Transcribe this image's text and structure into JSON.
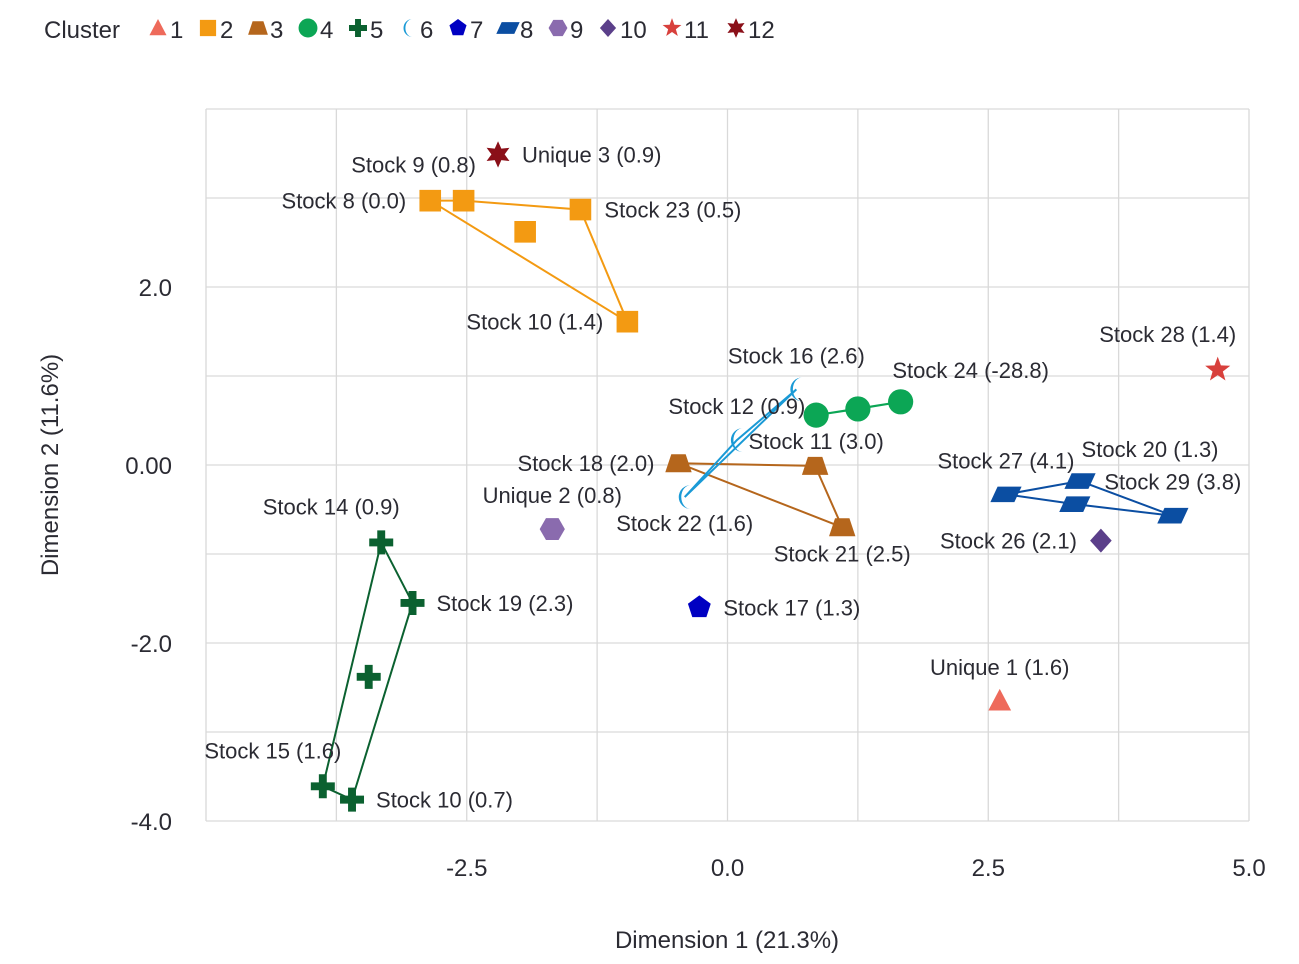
{
  "chart_data": {
    "type": "scatter",
    "xlabel": "Dimension 1 (21.3%)",
    "ylabel": "Dimension 2 (11.6%)",
    "xlim": [
      -5,
      5
    ],
    "ylim": [
      -4,
      4
    ],
    "x_gridlines": [
      -5,
      -3.75,
      -2.5,
      -1.25,
      0,
      1.25,
      2.5,
      3.75,
      5
    ],
    "y_gridlines": [
      -4,
      -3,
      -2,
      -1,
      0,
      1,
      2,
      3,
      4
    ],
    "x_ticks": [
      {
        "value": -2.5,
        "label": "-2.5"
      },
      {
        "value": 0,
        "label": "0.0"
      },
      {
        "value": 2.5,
        "label": "2.5"
      },
      {
        "value": 5,
        "label": "5.0"
      }
    ],
    "y_ticks": [
      {
        "value": 2,
        "label": "2.0"
      },
      {
        "value": 0,
        "label": "0.00"
      },
      {
        "value": -2,
        "label": "-2.0"
      },
      {
        "value": -4,
        "label": "-4.0"
      }
    ],
    "grid": true,
    "legend": {
      "title": "Cluster",
      "placement": "top-left"
    },
    "series": [
      {
        "name": "1",
        "marker": "triangle",
        "color": "#EE6A5B",
        "hull": false,
        "points": [
          {
            "x": 2.61,
            "y": -2.65,
            "label": "Unique 1 (1.6)",
            "label_pos": "above"
          }
        ]
      },
      {
        "name": "2",
        "marker": "square",
        "color": "#F39A12",
        "hull": true,
        "points": [
          {
            "x": -2.85,
            "y": 2.97,
            "label": "Stock 8 (0.0)",
            "label_pos": "left"
          },
          {
            "x": -2.53,
            "y": 2.97,
            "label": "Stock 9 (0.8)",
            "label_pos": "above-left"
          },
          {
            "x": -1.41,
            "y": 2.87,
            "label": "Stock 23 (0.5)",
            "label_pos": "right"
          },
          {
            "x": -0.96,
            "y": 1.61,
            "label": "Stock 10 (1.4)",
            "label_pos": "left"
          },
          {
            "x": -1.94,
            "y": 2.62,
            "label": "",
            "label_pos": "none"
          }
        ]
      },
      {
        "name": "3",
        "marker": "trapezoid",
        "color": "#B5661C",
        "hull": true,
        "points": [
          {
            "x": -0.47,
            "y": 0.02,
            "label": "Stock 18 (2.0)",
            "label_pos": "left"
          },
          {
            "x": 0.84,
            "y": -0.01,
            "label": "",
            "label_pos": "none"
          },
          {
            "x": 1.1,
            "y": -0.7,
            "label": "Stock 21 (2.5)",
            "label_pos": "below"
          }
        ]
      },
      {
        "name": "4",
        "marker": "circle",
        "color": "#0CA655",
        "hull": true,
        "points": [
          {
            "x": 0.85,
            "y": 0.56,
            "label": "Stock 11 (3.0)",
            "label_pos": "below"
          },
          {
            "x": 1.25,
            "y": 0.63,
            "label": "",
            "label_pos": "none"
          },
          {
            "x": 1.66,
            "y": 0.71,
            "label": "Stock 24 (-28.8)",
            "label_pos": "above-right"
          }
        ]
      },
      {
        "name": "5",
        "marker": "cross",
        "color": "#0B6130",
        "hull": true,
        "points": [
          {
            "x": -3.32,
            "y": -0.87,
            "label": "Stock 14 (0.9)",
            "label_pos": "above-left"
          },
          {
            "x": -3.02,
            "y": -1.55,
            "label": "Stock 19 (2.3)",
            "label_pos": "right"
          },
          {
            "x": -3.6,
            "y": -3.76,
            "label": "Stock 10 (0.7)",
            "label_pos": "right"
          },
          {
            "x": -3.88,
            "y": -3.61,
            "label": "Stock 15 (1.6)",
            "label_pos": "above-left"
          },
          {
            "x": -3.44,
            "y": -2.38,
            "label": "",
            "label_pos": "none"
          }
        ]
      },
      {
        "name": "6",
        "marker": "crescent",
        "color": "#1A9AD6",
        "hull": true,
        "points": [
          {
            "x": 0.66,
            "y": 0.85,
            "label": "Stock 16 (2.6)",
            "label_pos": "above"
          },
          {
            "x": 0.09,
            "y": 0.28,
            "label": "Stock 12 (0.9)",
            "label_pos": "above"
          },
          {
            "x": -0.41,
            "y": -0.36,
            "label": "Stock 22 (1.6)",
            "label_pos": "below"
          }
        ]
      },
      {
        "name": "7",
        "marker": "pentagon",
        "color": "#0000C2",
        "hull": false,
        "points": [
          {
            "x": -0.27,
            "y": -1.6,
            "label": "Stock 17 (1.3)",
            "label_pos": "right"
          }
        ]
      },
      {
        "name": "8",
        "marker": "parallelogram",
        "color": "#0B4EA2",
        "hull": true,
        "points": [
          {
            "x": 2.67,
            "y": -0.33,
            "label": "Stock 27 (4.1)",
            "label_pos": "above"
          },
          {
            "x": 3.38,
            "y": -0.18,
            "label": "Stock 20 (1.3)",
            "label_pos": "above-right"
          },
          {
            "x": 4.27,
            "y": -0.57,
            "label": "Stock 29 (3.8)",
            "label_pos": "above"
          },
          {
            "x": 3.33,
            "y": -0.44,
            "label": "",
            "label_pos": "none"
          }
        ]
      },
      {
        "name": "9",
        "marker": "hexagon",
        "color": "#8A6BAE",
        "hull": false,
        "points": [
          {
            "x": -1.68,
            "y": -0.72,
            "label": "Unique 2 (0.8)",
            "label_pos": "above"
          }
        ]
      },
      {
        "name": "10",
        "marker": "diamond",
        "color": "#5B3F8A",
        "hull": false,
        "points": [
          {
            "x": 3.58,
            "y": -0.85,
            "label": "Stock 26 (2.1)",
            "label_pos": "left"
          }
        ]
      },
      {
        "name": "11",
        "marker": "star5",
        "color": "#D8403C",
        "hull": false,
        "points": [
          {
            "x": 4.7,
            "y": 1.07,
            "label": "Stock 28 (1.4)",
            "label_pos": "above-left"
          }
        ]
      },
      {
        "name": "12",
        "marker": "star6",
        "color": "#8A0F18",
        "hull": false,
        "points": [
          {
            "x": -2.2,
            "y": 3.49,
            "label": "Unique 3 (0.9)",
            "label_pos": "right"
          }
        ]
      }
    ]
  }
}
